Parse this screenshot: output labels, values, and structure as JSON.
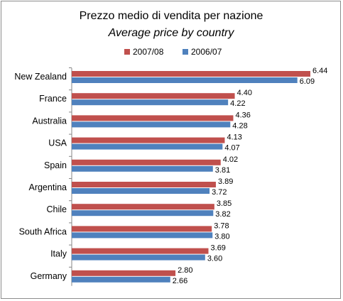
{
  "chart_data": {
    "type": "bar",
    "orientation": "horizontal",
    "title": "Prezzo medio di vendita per nazione",
    "subtitle": "Average price  by country",
    "categories": [
      "New Zealand",
      "France",
      "Australia",
      "USA",
      "Spain",
      "Argentina",
      "Chile",
      "South Africa",
      "Italy",
      "Germany"
    ],
    "series": [
      {
        "name": "2007/08",
        "color": "#c0504d",
        "values": [
          6.44,
          4.4,
          4.36,
          4.13,
          4.02,
          3.89,
          3.85,
          3.78,
          3.69,
          2.8
        ],
        "labels": [
          "6.44",
          "4.40",
          "4.36",
          "4.13",
          "4.02",
          "3.89",
          "3.85",
          "3.78",
          "3.69",
          "2.80"
        ]
      },
      {
        "name": "2006/07",
        "color": "#4f81bd",
        "values": [
          6.09,
          4.22,
          4.28,
          4.07,
          3.81,
          3.72,
          3.82,
          3.8,
          3.6,
          2.66
        ],
        "labels": [
          "6.09",
          "4.22",
          "4.28",
          "4.07",
          "3.81",
          "3.72",
          "3.82",
          "3.80",
          "3.60",
          "2.66"
        ]
      }
    ],
    "xlim": [
      0,
      6.44
    ],
    "xaxis_visible": false,
    "grid": false,
    "legend_position": "top"
  }
}
